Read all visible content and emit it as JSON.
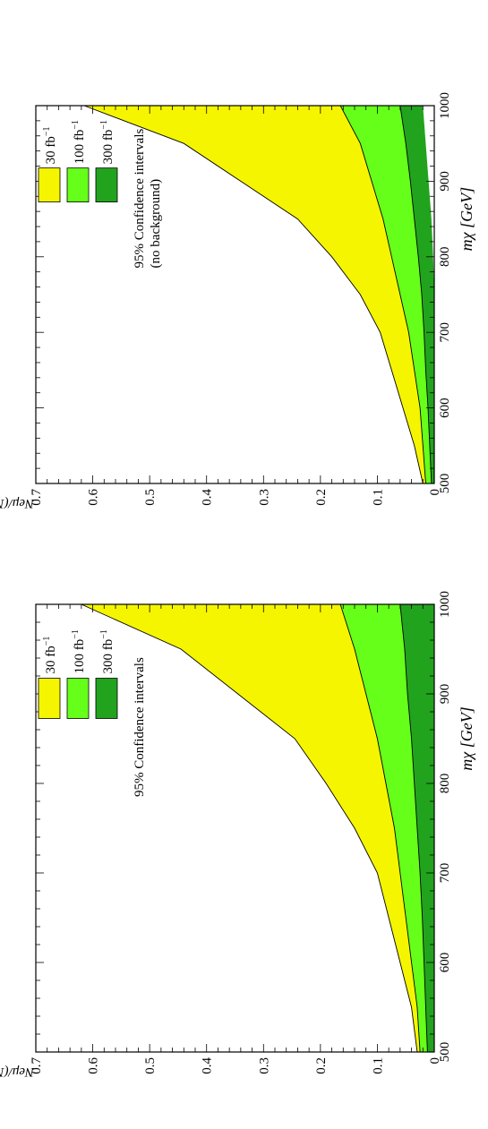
{
  "chart_data": [
    {
      "type": "area",
      "orientation": "rotated 90° counter-clockwise",
      "title": "",
      "annotation": "95% Confidence intervals",
      "annotation_line2": "",
      "xlabel": "m_χ [GeV]",
      "ylabel": "N_eμ/(N_ee + N_μμ)",
      "xlim": [
        500,
        1000
      ],
      "ylim": [
        0,
        0.7
      ],
      "x_ticks": [
        "500",
        "600",
        "700",
        "800",
        "900",
        "1000"
      ],
      "y_ticks": [
        "0",
        "0.1",
        "0.2",
        "0.3",
        "0.4",
        "0.5",
        "0.6",
        "0.7"
      ],
      "grid": false,
      "legend_position": "top-left",
      "series": [
        {
          "name": "30 fb⁻¹",
          "color": "#f5f500",
          "x": [
            500,
            550,
            600,
            650,
            700,
            750,
            800,
            850,
            900,
            950,
            1000
          ],
          "lower": [
            0.025,
            0.03,
            0.04,
            0.05,
            0.06,
            0.07,
            0.085,
            0.1,
            0.12,
            0.14,
            0.165
          ],
          "upper": [
            0.03,
            0.04,
            0.06,
            0.08,
            0.1,
            0.14,
            0.19,
            0.245,
            0.345,
            0.445,
            0.62
          ]
        },
        {
          "name": "100 fb⁻¹",
          "color": "#66ff1a",
          "x": [
            500,
            550,
            600,
            650,
            700,
            750,
            800,
            850,
            900,
            950,
            1000
          ],
          "lower": [
            0.012,
            0.015,
            0.018,
            0.021,
            0.025,
            0.03,
            0.035,
            0.04,
            0.047,
            0.052,
            0.06
          ],
          "upper": [
            0.025,
            0.03,
            0.04,
            0.05,
            0.06,
            0.07,
            0.085,
            0.1,
            0.12,
            0.14,
            0.165
          ]
        },
        {
          "name": "300 fb⁻¹",
          "color": "#22a31e",
          "x": [
            500,
            550,
            600,
            650,
            700,
            750,
            800,
            850,
            900,
            950,
            1000
          ],
          "lower": [
            0,
            0,
            0,
            0,
            0,
            0,
            0,
            0,
            0,
            0,
            0
          ],
          "upper": [
            0.012,
            0.015,
            0.018,
            0.021,
            0.025,
            0.03,
            0.035,
            0.04,
            0.047,
            0.052,
            0.06
          ]
        }
      ]
    },
    {
      "type": "area",
      "orientation": "rotated 90° counter-clockwise",
      "title": "",
      "annotation": "95% Confidence intervals",
      "annotation_line2": "(no background)",
      "xlabel": "m_χ [GeV]",
      "ylabel": "N_eμ/(N_ee + N_μμ)",
      "xlim": [
        500,
        1000
      ],
      "ylim": [
        0,
        0.7
      ],
      "x_ticks": [
        "500",
        "600",
        "700",
        "800",
        "900",
        "1000"
      ],
      "y_ticks": [
        "0",
        "0.1",
        "0.2",
        "0.3",
        "0.4",
        "0.5",
        "0.6",
        "0.7"
      ],
      "grid": false,
      "legend_position": "top-left",
      "series": [
        {
          "name": "30 fb⁻¹",
          "color": "#f5f500",
          "x": [
            500,
            550,
            600,
            650,
            700,
            750,
            800,
            850,
            900,
            950,
            1000
          ],
          "lower": [
            0.015,
            0.02,
            0.025,
            0.035,
            0.045,
            0.06,
            0.075,
            0.09,
            0.11,
            0.13,
            0.165
          ],
          "upper": [
            0.02,
            0.035,
            0.055,
            0.075,
            0.095,
            0.13,
            0.18,
            0.24,
            0.34,
            0.44,
            0.615
          ]
        },
        {
          "name": "100 fb⁻¹",
          "color": "#66ff1a",
          "x": [
            500,
            550,
            600,
            650,
            700,
            750,
            800,
            850,
            900,
            950,
            1000
          ],
          "lower": [
            0.005,
            0.008,
            0.011,
            0.015,
            0.018,
            0.022,
            0.028,
            0.035,
            0.042,
            0.05,
            0.06
          ],
          "upper": [
            0.015,
            0.02,
            0.025,
            0.035,
            0.045,
            0.06,
            0.075,
            0.09,
            0.11,
            0.13,
            0.165
          ]
        },
        {
          "name": "300 fb⁻¹",
          "color": "#22a31e",
          "x": [
            500,
            550,
            600,
            650,
            700,
            750,
            800,
            850,
            900,
            950,
            1000
          ],
          "lower": [
            0,
            0,
            0,
            0,
            0,
            0,
            0.002,
            0.005,
            0.01,
            0.015,
            0.02
          ],
          "upper": [
            0.005,
            0.008,
            0.011,
            0.015,
            0.018,
            0.022,
            0.028,
            0.035,
            0.042,
            0.05,
            0.06
          ]
        }
      ]
    }
  ]
}
